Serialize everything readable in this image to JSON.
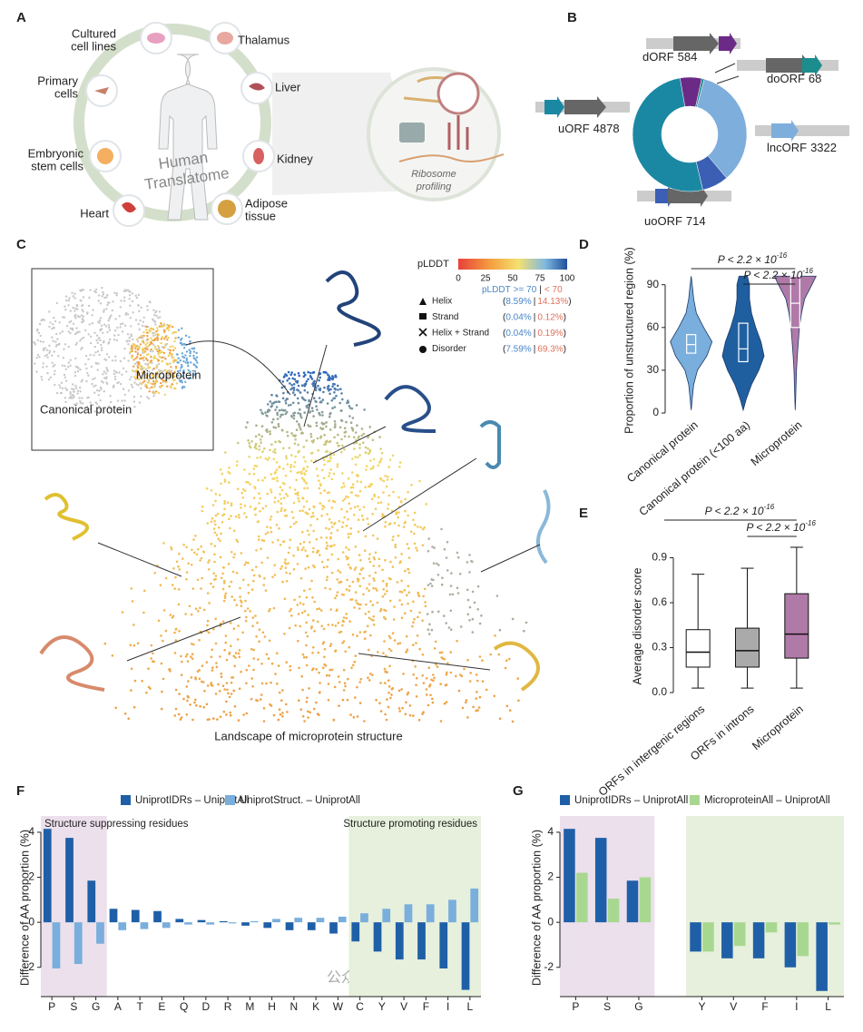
{
  "panel_a": {
    "panel": "A",
    "center": [
      "Human",
      "Translatome"
    ],
    "ribo": [
      "Ribosome",
      "profiling"
    ],
    "items": [
      [
        "Cultured",
        "cell lines"
      ],
      [
        "Thalamus"
      ],
      [
        "Primary",
        "cells"
      ],
      [
        "Liver"
      ],
      [
        "Embryonic",
        "stem cells"
      ],
      [
        "Kidney"
      ],
      [
        "Heart"
      ],
      [
        "Adipose",
        "tissue"
      ]
    ]
  },
  "panel_c": {
    "panel": "C",
    "caption": "Landscape of microprotein structure",
    "inset": [
      "Canonical protein",
      "Microprotein"
    ],
    "colorbar": {
      "title": "pLDDT",
      "lim": [
        0,
        100
      ],
      "ticks": [
        0,
        25,
        50,
        75,
        100
      ]
    },
    "head": [
      "pLDDT",
      ">= 70",
      "|",
      "< 70"
    ],
    "open": "(",
    "sep": "|",
    "close": ")",
    "rows": [
      {
        "label": "Helix",
        "high": "8.59%",
        "low": "14.13%"
      },
      {
        "label": "Strand",
        "high": "0.04%",
        "low": "0.12%"
      },
      {
        "label": "Helix + Strand",
        "high": "0.04%",
        "low": "0.19%"
      },
      {
        "label": "Disorder",
        "high": "7.59%",
        "low": "69.3%"
      }
    ]
  },
  "chart_data": [
    {
      "type": "pie",
      "panel": "B",
      "categories": [
        "dORF",
        "doORF",
        "lncORF",
        "uoORF",
        "uORF"
      ],
      "values": [
        584,
        68,
        3322,
        714,
        4878
      ],
      "colors": [
        "#6b2a86",
        "#1d8c8c",
        "#7eaedb",
        "#3b5fb4",
        "#1b88a3"
      ]
    },
    {
      "type": "violin",
      "panel": "D",
      "ylabel": "Proportion of unstructured region (%)",
      "categories": [
        "Canonical protein",
        "Canonical  protein (<100 aa)",
        "Microprotein"
      ],
      "colors": [
        "#7aaedc",
        "#1f5fa0",
        "#b07aa8"
      ],
      "ylim": [
        0,
        100
      ],
      "yticks": [
        0,
        30,
        60,
        90
      ],
      "density_y": [
        2,
        10,
        20,
        30,
        40,
        50,
        60,
        70,
        80,
        90,
        96
      ],
      "densities": [
        [
          0,
          0.05,
          0.12,
          0.3,
          0.75,
          1.0,
          0.6,
          0.25,
          0.12,
          0.05,
          0
        ],
        [
          0,
          0.15,
          0.4,
          0.75,
          1.0,
          0.85,
          0.6,
          0.4,
          0.3,
          0.3,
          0.2
        ],
        [
          0,
          0.02,
          0.04,
          0.06,
          0.1,
          0.15,
          0.2,
          0.3,
          0.45,
          0.8,
          1.0
        ]
      ],
      "q1": [
        42,
        36,
        60
      ],
      "medians": [
        48,
        45,
        77
      ],
      "q3": [
        55,
        63,
        96
      ],
      "annotations": [
        {
          "text": "P < 2.2 × 10",
          "sup": "-16"
        },
        {
          "text": "P < 2.2 × 10",
          "sup": "-16"
        }
      ]
    },
    {
      "type": "box",
      "panel": "E",
      "ylabel": "Average disorder score",
      "categories": [
        "ORFs in intergenic regions",
        "ORFs in introns",
        "Microprotein"
      ],
      "colors": [
        "#ffffff",
        "#aaaaaa",
        "#b07aa8"
      ],
      "ylim": [
        -0.03,
        1.0
      ],
      "yticks": [
        {
          "value": 0,
          "label": "0.0"
        },
        0.3,
        0.6,
        0.9
      ],
      "min": [
        0.03,
        0.03,
        0.03
      ],
      "q1": [
        0.17,
        0.17,
        0.23
      ],
      "medians": [
        0.27,
        0.28,
        0.39
      ],
      "q3": [
        0.42,
        0.43,
        0.66
      ],
      "max": [
        0.79,
        0.83,
        0.97
      ],
      "annotations": [
        {
          "text": "P < 2.2 × 10",
          "sup": "-16"
        },
        {
          "text": "P < 2.2 × 10",
          "sup": "-16"
        }
      ]
    },
    {
      "type": "bar",
      "panel": "F",
      "ylabel": "Difference of AA proportion (%)",
      "regions": [
        "Structure suppressing residues",
        "Structure promoting residues"
      ],
      "categories": [
        "P",
        "S",
        "G",
        "A",
        "T",
        "E",
        "Q",
        "D",
        "R",
        "M",
        "H",
        "N",
        "K",
        "W",
        "C",
        "Y",
        "V",
        "F",
        "I",
        "L"
      ],
      "series": [
        {
          "name": "UniprotIDRs – UniprotAll",
          "color": "#1f5fa8",
          "values": [
            4.15,
            3.75,
            1.85,
            0.6,
            0.55,
            0.5,
            0.15,
            0.1,
            0.05,
            -0.15,
            -0.25,
            -0.35,
            -0.35,
            -0.5,
            -0.85,
            -1.3,
            -1.65,
            -1.65,
            -2.05,
            -3.0
          ]
        },
        {
          "name": "UniprotStruct. – UniprotAll",
          "color": "#7aaedc",
          "values": [
            -2.05,
            -1.85,
            -0.95,
            -0.35,
            -0.3,
            -0.25,
            -0.1,
            -0.1,
            -0.05,
            0.05,
            0.15,
            0.2,
            0.2,
            0.25,
            0.4,
            0.6,
            0.8,
            0.8,
            1.0,
            1.5
          ]
        }
      ],
      "ylim": [
        -3.3,
        4.4
      ],
      "yticks": [
        -2,
        0,
        2,
        4
      ]
    },
    {
      "type": "bar",
      "panel": "G",
      "ylabel": "Difference of AA proportion (%)",
      "regions": [],
      "categories": [
        "P",
        "S",
        "G",
        null,
        "Y",
        "V",
        "F",
        "I",
        "L"
      ],
      "series": [
        {
          "name": "UniprotIDRs – UniprotAll",
          "color": "#1f5fa8",
          "values": [
            4.15,
            3.75,
            1.85,
            null,
            -1.3,
            -1.6,
            -1.6,
            -2.0,
            -3.05
          ]
        },
        {
          "name": "MicroproteinAll – UniprotAll",
          "color": "#a8d890",
          "values": [
            2.2,
            1.05,
            2.0,
            null,
            -1.3,
            -1.05,
            -0.45,
            -1.5,
            -0.1
          ]
        }
      ],
      "ylim": [
        -3.3,
        4.4
      ],
      "yticks": [
        -2,
        0,
        2,
        4
      ]
    }
  ],
  "watermark": "公众号 · 新使生物"
}
